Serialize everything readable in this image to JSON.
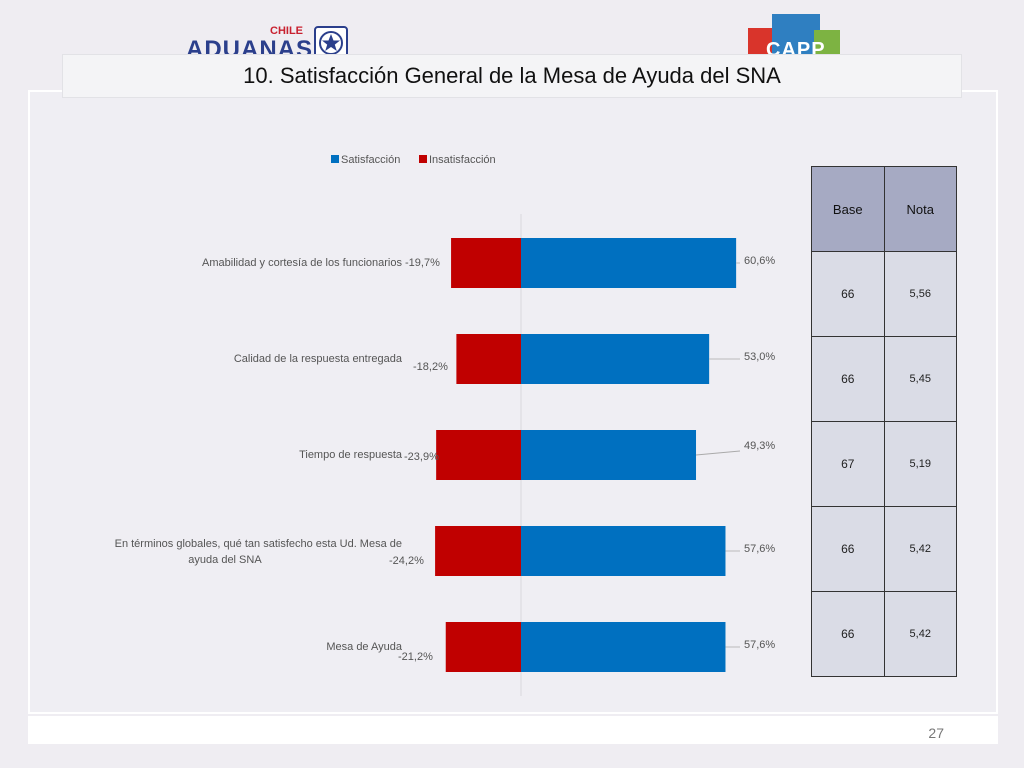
{
  "header": {
    "logo_left_top": "CHILE",
    "logo_left_main": "ADUANAS",
    "logo_right": "CAPP",
    "title": "10. Satisfacción General de la Mesa de Ayuda del SNA"
  },
  "footer": {
    "page_number": "27"
  },
  "colors": {
    "satisfaction": "#0070c0",
    "dissatisfaction": "#c00000"
  },
  "chart_data": {
    "type": "bar",
    "orientation": "horizontal",
    "stacked": "diverging",
    "legend": {
      "position": "top",
      "entries": [
        "Satisfacción",
        "Insatisfacción"
      ]
    },
    "categories": [
      "Amabilidad y cortesía de los funcionarios",
      "Calidad de la respuesta entregada",
      "Tiempo de respuesta",
      "En términos globales, qué tan satisfecho esta Ud. Mesa de ayuda del SNA",
      "Mesa de Ayuda"
    ],
    "series": [
      {
        "name": "Satisfacción",
        "values": [
          60.6,
          53.0,
          49.3,
          57.6,
          57.6
        ],
        "labels": [
          "60,6%",
          "53,0%",
          "49,3%",
          "57,6%",
          "57,6%"
        ]
      },
      {
        "name": "Insatisfacción",
        "values": [
          -19.7,
          -18.2,
          -23.9,
          -24.2,
          -21.2
        ],
        "labels": [
          "-19,7%",
          "-18,2%",
          "-23,9%",
          "-24,2%",
          "-21,2%"
        ]
      }
    ]
  },
  "table": {
    "headers": [
      "Base",
      "Nota"
    ],
    "rows": [
      {
        "base": "66",
        "nota": "5,56"
      },
      {
        "base": "66",
        "nota": "5,45"
      },
      {
        "base": "67",
        "nota": "5,19"
      },
      {
        "base": "66",
        "nota": "5,42"
      },
      {
        "base": "66",
        "nota": "5,42"
      }
    ]
  }
}
